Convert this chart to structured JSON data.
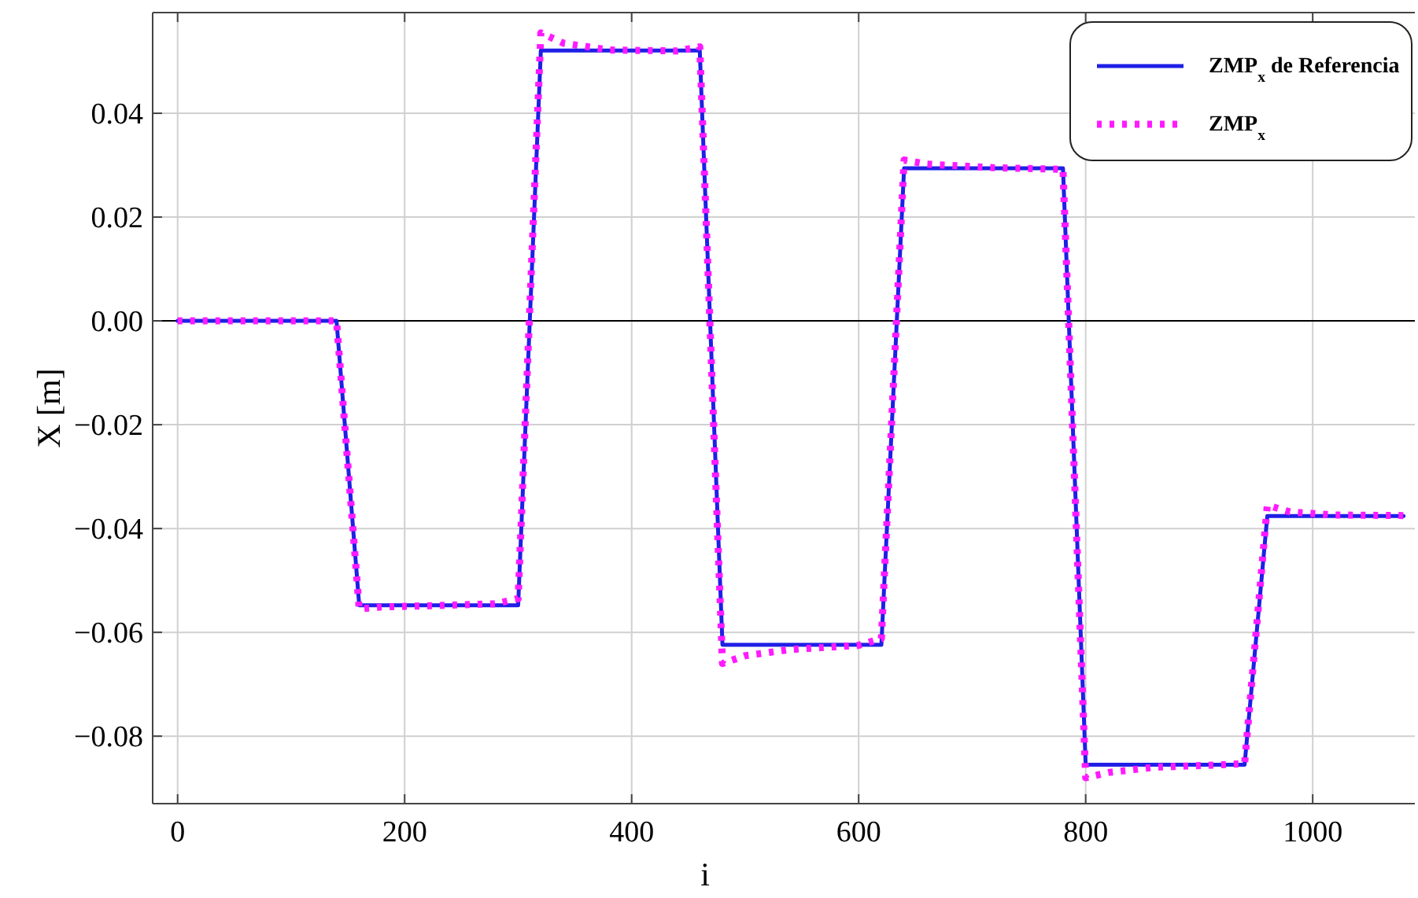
{
  "chart_data": {
    "type": "line",
    "xlabel": "i",
    "ylabel": "X [m]",
    "xlim": [
      -22,
      1090
    ],
    "ylim": [
      -0.093,
      0.0594
    ],
    "xticks": [
      0,
      200,
      400,
      600,
      800,
      1000
    ],
    "yticks": [
      {
        "value": -0.08,
        "label": "−0.08"
      },
      {
        "value": -0.06,
        "label": "−0.06"
      },
      {
        "value": -0.04,
        "label": "−0.04"
      },
      {
        "value": -0.02,
        "label": "−0.02"
      },
      {
        "value": 0,
        "label": "0.00"
      },
      {
        "value": 0.02,
        "label": "0.02"
      },
      {
        "value": 0.04,
        "label": "0.04"
      }
    ],
    "grid": true,
    "legend": "top right",
    "marker": "none",
    "ref_lines": [
      {
        "axis": "y",
        "value": 0,
        "color": "#000000"
      }
    ],
    "series": [
      {
        "name": "ZMP$_{x}$ de Referencia",
        "color": "#1f1fe6",
        "line_style": "solid",
        "x": [
          0,
          140,
          160,
          300,
          320,
          460,
          480,
          620,
          640,
          780,
          800,
          940,
          960,
          1080
        ],
        "values": [
          0,
          0,
          -0.0548,
          -0.0548,
          0.0521,
          0.0521,
          -0.0624,
          -0.0624,
          0.0294,
          0.0294,
          -0.0855,
          -0.0855,
          -0.0376,
          -0.0376
        ]
      },
      {
        "name": "ZMP$_{x}$",
        "color": "#ff1aff",
        "line_style": "dotted",
        "x": [
          0,
          140,
          160,
          180,
          220,
          280,
          300,
          320,
          340,
          380,
          440,
          460,
          480,
          500,
          540,
          600,
          620,
          640,
          660,
          720,
          780,
          800,
          820,
          860,
          920,
          940,
          960,
          980,
          1020,
          1080
        ],
        "values": [
          0,
          0,
          -0.0555,
          -0.0551,
          -0.0549,
          -0.0545,
          -0.0535,
          0.0555,
          0.0535,
          0.0522,
          0.052,
          0.0528,
          -0.066,
          -0.0645,
          -0.0633,
          -0.0625,
          -0.0612,
          0.031,
          0.0302,
          0.0295,
          0.0292,
          -0.088,
          -0.087,
          -0.086,
          -0.0855,
          -0.0853,
          -0.0355,
          -0.0368,
          -0.0374,
          -0.0375
        ]
      }
    ]
  }
}
